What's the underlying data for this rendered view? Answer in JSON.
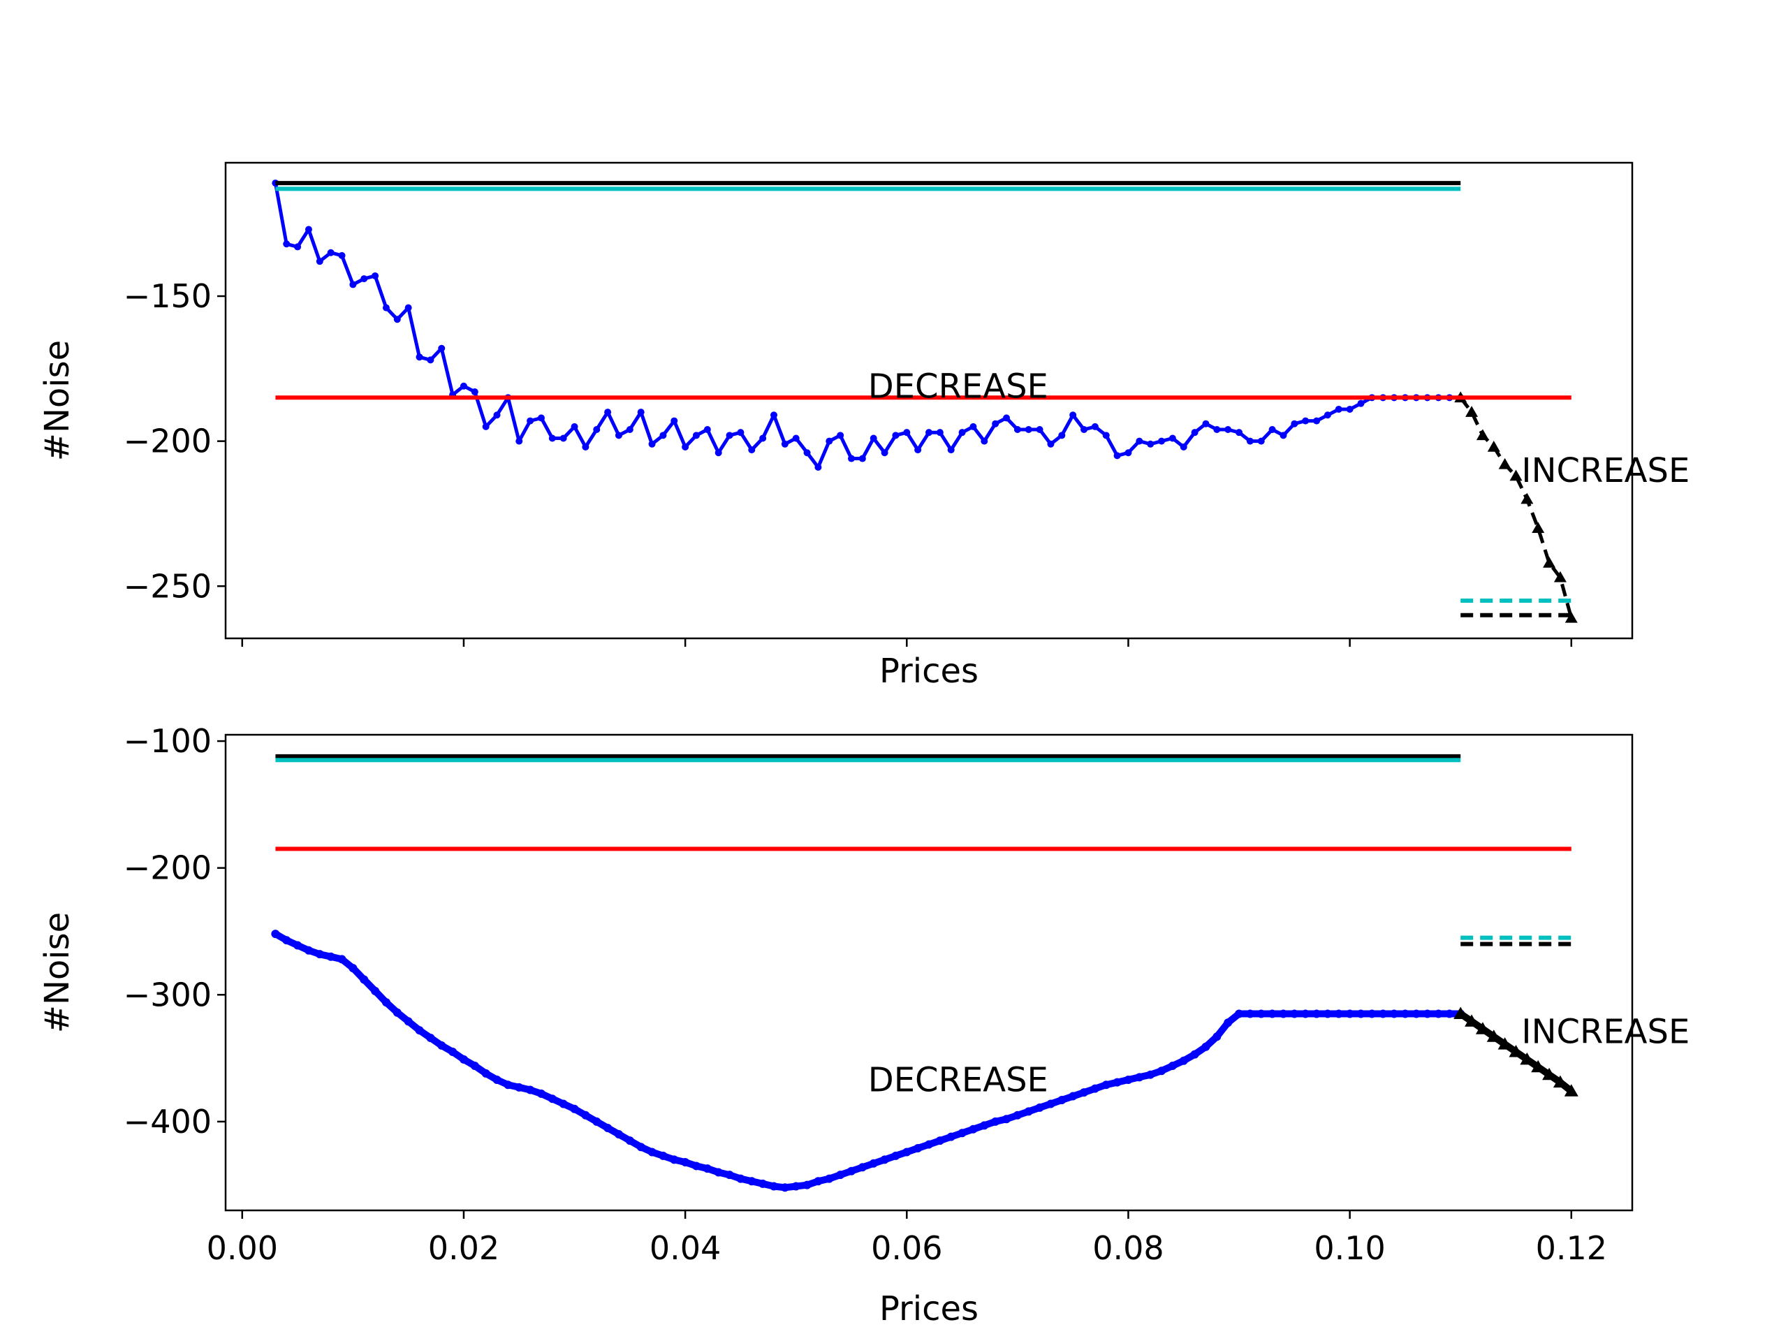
{
  "chart_data": [
    {
      "type": "line",
      "xlabel": "Prices",
      "ylabel": "#Noise",
      "xlim": [
        -0.0015,
        0.1255
      ],
      "ylim": [
        -268,
        -104
      ],
      "x_ticks": [
        0.0,
        0.02,
        0.04,
        0.06,
        0.08,
        0.1,
        0.12
      ],
      "x_tick_labels_visible": false,
      "y_ticks": [
        -250,
        -200,
        -150
      ],
      "y_tick_labels": [
        "−250",
        "−200",
        "−150"
      ],
      "annotations": [
        {
          "text": "DECREASE",
          "x": 0.0565,
          "y": -185
        },
        {
          "text": "INCREASE",
          "x": 0.1155,
          "y": -214
        }
      ],
      "series": [
        {
          "style": "solid",
          "color": "#0000ff",
          "marker": "dot",
          "x": [
            0.003,
            0.004,
            0.005,
            0.006,
            0.007,
            0.008,
            0.009,
            0.01,
            0.011,
            0.012,
            0.013,
            0.014,
            0.015,
            0.016,
            0.017,
            0.018,
            0.019,
            0.02,
            0.021,
            0.022,
            0.023,
            0.024,
            0.025,
            0.026,
            0.027,
            0.028,
            0.029,
            0.03,
            0.031,
            0.032,
            0.033,
            0.034,
            0.035,
            0.036,
            0.037,
            0.038,
            0.039,
            0.04,
            0.041,
            0.042,
            0.043,
            0.044,
            0.045,
            0.046,
            0.047,
            0.048,
            0.049,
            0.05,
            0.051,
            0.052,
            0.053,
            0.054,
            0.055,
            0.056,
            0.057,
            0.058,
            0.059,
            0.06,
            0.061,
            0.062,
            0.063,
            0.064,
            0.065,
            0.066,
            0.067,
            0.068,
            0.069,
            0.07,
            0.071,
            0.072,
            0.073,
            0.074,
            0.075,
            0.076,
            0.077,
            0.078,
            0.079,
            0.08,
            0.081,
            0.082,
            0.083,
            0.084,
            0.085,
            0.086,
            0.087,
            0.088,
            0.089,
            0.09,
            0.091,
            0.092,
            0.093,
            0.094,
            0.095,
            0.096,
            0.097,
            0.098,
            0.099,
            0.1,
            0.101,
            0.102,
            0.103,
            0.104,
            0.105,
            0.106,
            0.107,
            0.108,
            0.109,
            0.11
          ],
          "y": [
            -111,
            -132,
            -133,
            -127,
            -138,
            -135,
            -136,
            -146,
            -144,
            -143,
            -154,
            -158,
            -154,
            -171,
            -172,
            -168,
            -184,
            -181,
            -183,
            -195,
            -191,
            -185,
            -200,
            -193,
            -192,
            -199,
            -199,
            -195,
            -202,
            -196,
            -190,
            -198,
            -196,
            -190,
            -201,
            -198,
            -193,
            -202,
            -198,
            -196,
            -204,
            -198,
            -197,
            -203,
            -199,
            -191,
            -201,
            -199,
            -204,
            -209,
            -200,
            -198,
            -206,
            -206,
            -199,
            -204,
            -198,
            -197,
            -203,
            -197,
            -197,
            -203,
            -197,
            -195,
            -200,
            -194,
            -192,
            -196,
            -196,
            -196,
            -201,
            -198,
            -191,
            -196,
            -195,
            -198,
            -205,
            -204,
            -200,
            -201,
            -200,
            -199,
            -202,
            -197,
            -194,
            -196,
            -196,
            -197,
            -200,
            -200,
            -196,
            -198,
            -194,
            -193,
            -193,
            -191,
            -189,
            -189,
            -187,
            -185,
            -185,
            -185,
            -185,
            -185,
            -185,
            -185,
            -185,
            -185
          ]
        },
        {
          "style": "dashed",
          "color": "#000000",
          "marker": "triangle",
          "x": [
            0.11,
            0.111,
            0.112,
            0.113,
            0.114,
            0.115,
            0.116,
            0.117,
            0.118,
            0.119,
            0.12
          ],
          "y": [
            -185,
            -190,
            -198,
            -202,
            -208,
            -212,
            -220,
            -230,
            -242,
            -247,
            -261
          ]
        },
        {
          "style": "solid",
          "color": "#000000",
          "x": [
            0.003,
            0.11
          ],
          "y": [
            -111,
            -111
          ]
        },
        {
          "style": "solid",
          "color": "#00bfbf",
          "x": [
            0.003,
            0.11
          ],
          "y": [
            -113,
            -113
          ]
        },
        {
          "style": "solid",
          "color": "#ff0000",
          "x": [
            0.003,
            0.12
          ],
          "y": [
            -185,
            -185
          ]
        },
        {
          "style": "dashed",
          "color": "#00bfbf",
          "x": [
            0.11,
            0.12
          ],
          "y": [
            -255,
            -255
          ]
        },
        {
          "style": "dashed",
          "color": "#000000",
          "x": [
            0.11,
            0.12
          ],
          "y": [
            -260,
            -260
          ]
        }
      ]
    },
    {
      "type": "line",
      "xlabel": "Prices",
      "ylabel": "#Noise",
      "xlim": [
        -0.0015,
        0.1255
      ],
      "ylim": [
        -470,
        -95
      ],
      "x_ticks": [
        0.0,
        0.02,
        0.04,
        0.06,
        0.08,
        0.1,
        0.12
      ],
      "x_tick_labels": [
        "0.00",
        "0.02",
        "0.04",
        "0.06",
        "0.08",
        "0.10",
        "0.12"
      ],
      "x_tick_labels_visible": true,
      "y_ticks": [
        -400,
        -300,
        -200,
        -100
      ],
      "y_tick_labels": [
        "−400",
        "−300",
        "−200",
        "−100"
      ],
      "annotations": [
        {
          "text": "DECREASE",
          "x": 0.0565,
          "y": -376
        },
        {
          "text": "INCREASE",
          "x": 0.1155,
          "y": -338
        }
      ],
      "series": [
        {
          "style": "solid",
          "color": "#0000ff",
          "marker": "dot",
          "thick": true,
          "x": [
            0.003,
            0.004,
            0.005,
            0.006,
            0.007,
            0.008,
            0.009,
            0.01,
            0.011,
            0.012,
            0.013,
            0.014,
            0.015,
            0.016,
            0.017,
            0.018,
            0.019,
            0.02,
            0.021,
            0.022,
            0.023,
            0.024,
            0.025,
            0.026,
            0.027,
            0.028,
            0.029,
            0.03,
            0.031,
            0.032,
            0.033,
            0.034,
            0.035,
            0.036,
            0.037,
            0.038,
            0.039,
            0.04,
            0.041,
            0.042,
            0.043,
            0.044,
            0.045,
            0.046,
            0.047,
            0.048,
            0.049,
            0.05,
            0.051,
            0.052,
            0.053,
            0.054,
            0.055,
            0.056,
            0.057,
            0.058,
            0.059,
            0.06,
            0.061,
            0.062,
            0.063,
            0.064,
            0.065,
            0.066,
            0.067,
            0.068,
            0.069,
            0.07,
            0.071,
            0.072,
            0.073,
            0.074,
            0.075,
            0.076,
            0.077,
            0.078,
            0.079,
            0.08,
            0.081,
            0.082,
            0.083,
            0.084,
            0.085,
            0.086,
            0.087,
            0.088,
            0.089,
            0.09,
            0.091,
            0.092,
            0.093,
            0.094,
            0.095,
            0.096,
            0.097,
            0.098,
            0.099,
            0.1,
            0.101,
            0.102,
            0.103,
            0.104,
            0.105,
            0.106,
            0.107,
            0.108,
            0.109,
            0.11
          ],
          "y": [
            -252,
            -257,
            -261,
            -265,
            -268,
            -270,
            -272,
            -279,
            -288,
            -297,
            -306,
            -314,
            -321,
            -328,
            -334,
            -340,
            -345,
            -351,
            -356,
            -362,
            -367,
            -371,
            -373,
            -375,
            -378,
            -382,
            -386,
            -390,
            -395,
            -400,
            -405,
            -410,
            -415,
            -420,
            -424,
            -427,
            -430,
            -432,
            -435,
            -437,
            -440,
            -442,
            -445,
            -447,
            -449,
            -451,
            -452,
            -451,
            -450,
            -447,
            -445,
            -442,
            -439,
            -436,
            -433,
            -430,
            -427,
            -424,
            -421,
            -418,
            -415,
            -412,
            -409,
            -406,
            -403,
            -400,
            -398,
            -395,
            -392,
            -389,
            -386,
            -383,
            -380,
            -377,
            -374,
            -371,
            -369,
            -367,
            -365,
            -363,
            -360,
            -356,
            -352,
            -347,
            -341,
            -333,
            -322,
            -315,
            -315,
            -315,
            -315,
            -315,
            -315,
            -315,
            -315,
            -315,
            -315,
            -315,
            -315,
            -315,
            -315,
            -315,
            -315,
            -315,
            -315,
            -315,
            -315,
            -315
          ]
        },
        {
          "style": "solid",
          "color": "#000000",
          "marker": "triangle",
          "thick": true,
          "x": [
            0.11,
            0.111,
            0.112,
            0.113,
            0.114,
            0.115,
            0.116,
            0.117,
            0.118,
            0.119,
            0.12
          ],
          "y": [
            -315,
            -321,
            -327,
            -333,
            -339,
            -345,
            -351,
            -357,
            -363,
            -369,
            -376
          ]
        },
        {
          "style": "solid",
          "color": "#000000",
          "x": [
            0.003,
            0.11
          ],
          "y": [
            -112,
            -112
          ]
        },
        {
          "style": "solid",
          "color": "#00bfbf",
          "x": [
            0.003,
            0.11
          ],
          "y": [
            -115,
            -115
          ]
        },
        {
          "style": "solid",
          "color": "#ff0000",
          "x": [
            0.003,
            0.12
          ],
          "y": [
            -185,
            -185
          ]
        },
        {
          "style": "dashed",
          "color": "#00bfbf",
          "x": [
            0.11,
            0.12
          ],
          "y": [
            -255,
            -255
          ]
        },
        {
          "style": "dashed",
          "color": "#000000",
          "x": [
            0.11,
            0.12
          ],
          "y": [
            -260,
            -260
          ]
        }
      ]
    }
  ]
}
